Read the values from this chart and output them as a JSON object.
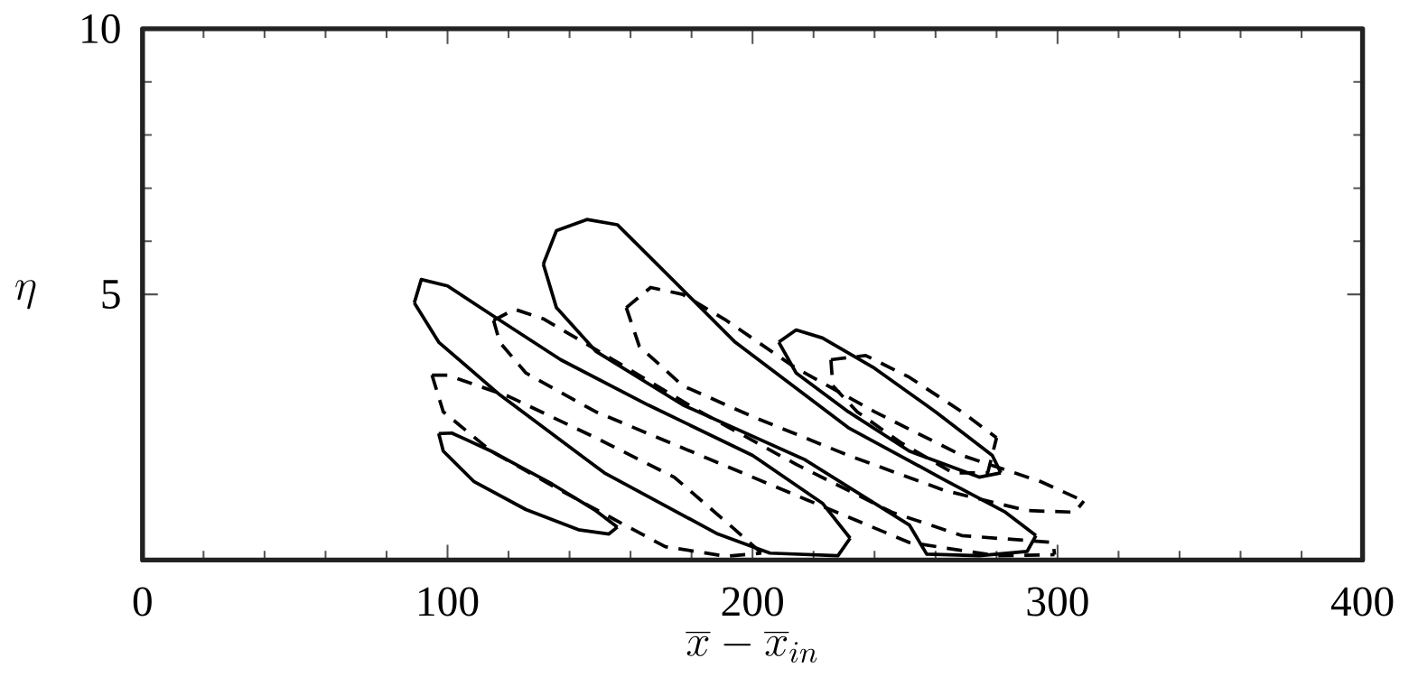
{
  "chart_data": {
    "type": "line",
    "xlabel": "\\overline{x}-\\overline{x}_{in}",
    "ylabel": "\\eta",
    "xlim": [
      0,
      400
    ],
    "ylim": [
      0,
      10
    ],
    "xticks": [
      0,
      100,
      200,
      300,
      400
    ],
    "yticks": [
      5,
      10
    ],
    "grid": false,
    "marker": "none",
    "series": [
      {
        "color": "#000000",
        "line_style": "solid",
        "x": [
          97.1,
          98.6,
          108.6,
          125.7,
          142.9,
          152.9,
          155.7
        ],
        "values": [
          2.38,
          2.05,
          1.48,
          0.95,
          0.57,
          0.49,
          0.62
        ]
      },
      {
        "color": "#000000",
        "line_style": "solid",
        "x": [
          97.1,
          101.4,
          114.3,
          134.3,
          148.6,
          155.7
        ],
        "values": [
          2.38,
          2.39,
          2.05,
          1.43,
          0.93,
          0.62
        ]
      },
      {
        "color": "#000000",
        "line_style": "solid",
        "x": [
          89.1,
          91.4,
          100,
          114.3,
          137.1,
          165.7,
          200,
          222.9,
          232
        ],
        "values": [
          4.84,
          5.28,
          5.16,
          4.62,
          3.77,
          2.92,
          1.97,
          1.07,
          0.41
        ]
      },
      {
        "color": "#000000",
        "line_style": "solid",
        "x": [
          89.1,
          97.1,
          117.1,
          151.4,
          188.6,
          205.7,
          228,
          232
        ],
        "values": [
          4.84,
          4.1,
          3.11,
          1.64,
          0.49,
          0.13,
          0.08,
          0.41
        ]
      },
      {
        "color": "#000000",
        "line_style": "solid",
        "x": [
          131.4,
          135.7,
          148.6,
          177.1,
          217.1,
          251.4,
          257.1,
          274.3,
          290,
          292.9
        ],
        "values": [
          5.57,
          4.75,
          3.93,
          2.92,
          1.89,
          0.66,
          0.11,
          0.08,
          0.16,
          0.46
        ]
      },
      {
        "color": "#000000",
        "line_style": "solid",
        "x": [
          131.4,
          135.7,
          145.7,
          155.7,
          165.7,
          194.3,
          231.4,
          262.9,
          282.9,
          292.9
        ],
        "values": [
          5.57,
          6.2,
          6.41,
          6.31,
          5.74,
          4.1,
          2.49,
          1.51,
          0.9,
          0.46
        ]
      },
      {
        "color": "#000000",
        "line_style": "solid",
        "x": [
          208.6,
          214.3,
          231.4,
          251.4,
          274.3,
          281.4
        ],
        "values": [
          4.1,
          3.52,
          2.79,
          2.05,
          1.56,
          1.64
        ]
      },
      {
        "color": "#000000",
        "line_style": "solid",
        "x": [
          208.6,
          214.3,
          222.9,
          240,
          260,
          278.6,
          281.4
        ],
        "values": [
          4.1,
          4.33,
          4.18,
          3.61,
          2.79,
          1.97,
          1.64
        ]
      },
      {
        "color": "#000000",
        "line_style": "dashed",
        "x": [
          94.9,
          98.6,
          114.3,
          137.1,
          157.1,
          171.4,
          191.4,
          202.9
        ],
        "values": [
          3.48,
          2.79,
          2.05,
          1.31,
          0.69,
          0.25,
          0.07,
          0.13
        ]
      },
      {
        "color": "#000000",
        "line_style": "dashed",
        "x": [
          94.9,
          100,
          120,
          148.6,
          174.3,
          194.3,
          202.9
        ],
        "values": [
          3.48,
          3.48,
          3.08,
          2.3,
          1.56,
          0.57,
          0.13
        ]
      },
      {
        "color": "#000000",
        "line_style": "dashed",
        "x": [
          115.1,
          122,
          131.4,
          154.3,
          182.9,
          214.3,
          245.7,
          268.6,
          298.6,
          299
        ],
        "values": [
          4.51,
          4.72,
          4.54,
          3.77,
          2.79,
          1.8,
          0.9,
          0.46,
          0.33,
          0.1
        ]
      },
      {
        "color": "#000000",
        "line_style": "dashed",
        "x": [
          115.1,
          117.1,
          125.7,
          148.6,
          182.9,
          217.1,
          251.4,
          280,
          299
        ],
        "values": [
          4.51,
          4.1,
          3.52,
          2.79,
          1.97,
          1.15,
          0.33,
          0.08,
          0.1
        ]
      },
      {
        "color": "#000000",
        "line_style": "dashed",
        "x": [
          158.6,
          166.6,
          177.1,
          191.4,
          214.3,
          240,
          268.6,
          294.3,
          308.6
        ],
        "values": [
          4.75,
          5.13,
          5.0,
          4.51,
          3.61,
          2.79,
          1.97,
          1.48,
          1.11
        ]
      },
      {
        "color": "#000000",
        "line_style": "dashed",
        "x": [
          158.6,
          162.9,
          177.1,
          200,
          231.4,
          262.9,
          290,
          305.7,
          308.6
        ],
        "values": [
          4.75,
          4.02,
          3.28,
          2.7,
          1.97,
          1.31,
          0.93,
          0.9,
          1.11
        ]
      },
      {
        "color": "#000000",
        "line_style": "dashed",
        "x": [
          225.7,
          237.1,
          251.4,
          268.6,
          280
        ],
        "values": [
          3.77,
          3.85,
          3.44,
          2.79,
          2.3
        ]
      },
      {
        "color": "#000000",
        "line_style": "dashed",
        "x": [
          225.7,
          226.3,
          234.3,
          248.6,
          265.7,
          277.1,
          280
        ],
        "values": [
          3.77,
          3.28,
          2.79,
          2.21,
          1.64,
          1.64,
          2.3
        ]
      }
    ]
  }
}
